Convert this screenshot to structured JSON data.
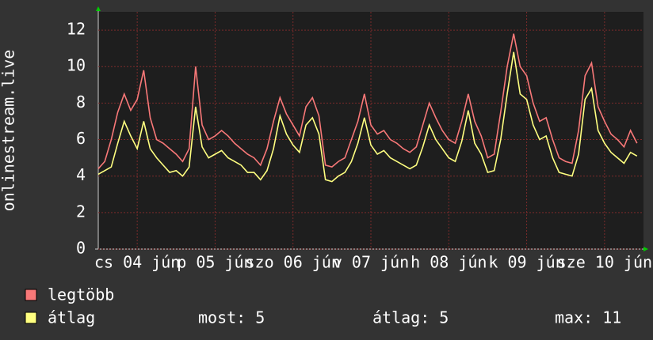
{
  "chart_data": {
    "type": "line",
    "y_label": "onlinestream.live",
    "xlim": [
      0,
      168
    ],
    "xticks": [
      {
        "value": 12,
        "label": "cs 04 jún"
      },
      {
        "value": 36,
        "label": "p 05 jún"
      },
      {
        "value": 60,
        "label": "szo 06 jún"
      },
      {
        "value": 84,
        "label": "v 07 jún"
      },
      {
        "value": 108,
        "label": "h 08 jún"
      },
      {
        "value": 132,
        "label": "k 09 jún"
      },
      {
        "value": 156,
        "label": "sze 10 jún"
      }
    ],
    "ylim": [
      0,
      13
    ],
    "yticks": [
      0,
      2,
      4,
      6,
      8,
      10,
      12
    ],
    "grid": true,
    "x": [
      0,
      2,
      4,
      6,
      8,
      10,
      12,
      14,
      16,
      18,
      20,
      22,
      24,
      26,
      28,
      30,
      32,
      34,
      36,
      38,
      40,
      42,
      44,
      46,
      48,
      50,
      52,
      54,
      56,
      58,
      60,
      62,
      64,
      66,
      68,
      70,
      72,
      74,
      76,
      78,
      80,
      82,
      84,
      86,
      88,
      90,
      92,
      94,
      96,
      98,
      100,
      102,
      104,
      106,
      108,
      110,
      112,
      114,
      116,
      118,
      120,
      122,
      124,
      126,
      128,
      130,
      132,
      134,
      136,
      138,
      140,
      142,
      144,
      146,
      148,
      150,
      152,
      154,
      156,
      158,
      160,
      162,
      164,
      166
    ],
    "series": [
      {
        "name": "legtöbb",
        "color": "#f87878",
        "values": [
          4.4,
          4.8,
          6.0,
          7.5,
          8.5,
          7.6,
          8.2,
          9.8,
          7.2,
          6.0,
          5.8,
          5.5,
          5.2,
          4.8,
          5.5,
          10.0,
          6.8,
          6.0,
          6.2,
          6.5,
          6.2,
          5.8,
          5.5,
          5.2,
          5.0,
          4.6,
          5.5,
          7.0,
          8.3,
          7.4,
          6.8,
          6.2,
          7.8,
          8.3,
          7.3,
          4.6,
          4.5,
          4.8,
          5.0,
          6.0,
          7.0,
          8.5,
          6.8,
          6.3,
          6.5,
          6.0,
          5.8,
          5.5,
          5.3,
          5.6,
          6.8,
          8.0,
          7.2,
          6.5,
          6.0,
          5.8,
          7.0,
          8.5,
          7.0,
          6.2,
          5.0,
          5.2,
          7.5,
          10.0,
          11.8,
          10.0,
          9.5,
          8.0,
          7.0,
          7.2,
          6.0,
          5.0,
          4.8,
          4.7,
          6.5,
          9.5,
          10.2,
          7.8,
          7.0,
          6.3,
          6.0,
          5.6,
          6.5,
          5.8
        ]
      },
      {
        "name": "átlag",
        "color": "#ffff80",
        "values": [
          4.1,
          4.3,
          4.5,
          5.8,
          7.0,
          6.2,
          5.5,
          7.0,
          5.5,
          5.0,
          4.6,
          4.2,
          4.3,
          4.0,
          4.5,
          7.8,
          5.6,
          5.0,
          5.2,
          5.4,
          5.0,
          4.8,
          4.6,
          4.2,
          4.2,
          3.8,
          4.3,
          5.5,
          7.3,
          6.3,
          5.7,
          5.3,
          6.8,
          7.2,
          6.3,
          3.8,
          3.7,
          4.0,
          4.2,
          4.8,
          5.8,
          7.2,
          5.7,
          5.2,
          5.4,
          5.0,
          4.8,
          4.6,
          4.4,
          4.6,
          5.6,
          6.8,
          6.0,
          5.5,
          5.0,
          4.8,
          5.9,
          7.6,
          5.8,
          5.2,
          4.2,
          4.3,
          6.0,
          8.5,
          10.8,
          8.5,
          8.2,
          6.8,
          6.0,
          6.2,
          5.0,
          4.2,
          4.1,
          4.0,
          5.2,
          8.2,
          8.8,
          6.5,
          5.8,
          5.3,
          5.0,
          4.7,
          5.3,
          5.1
        ]
      }
    ],
    "stats": [
      "most: 5",
      "átlag: 5",
      "max: 11"
    ]
  }
}
